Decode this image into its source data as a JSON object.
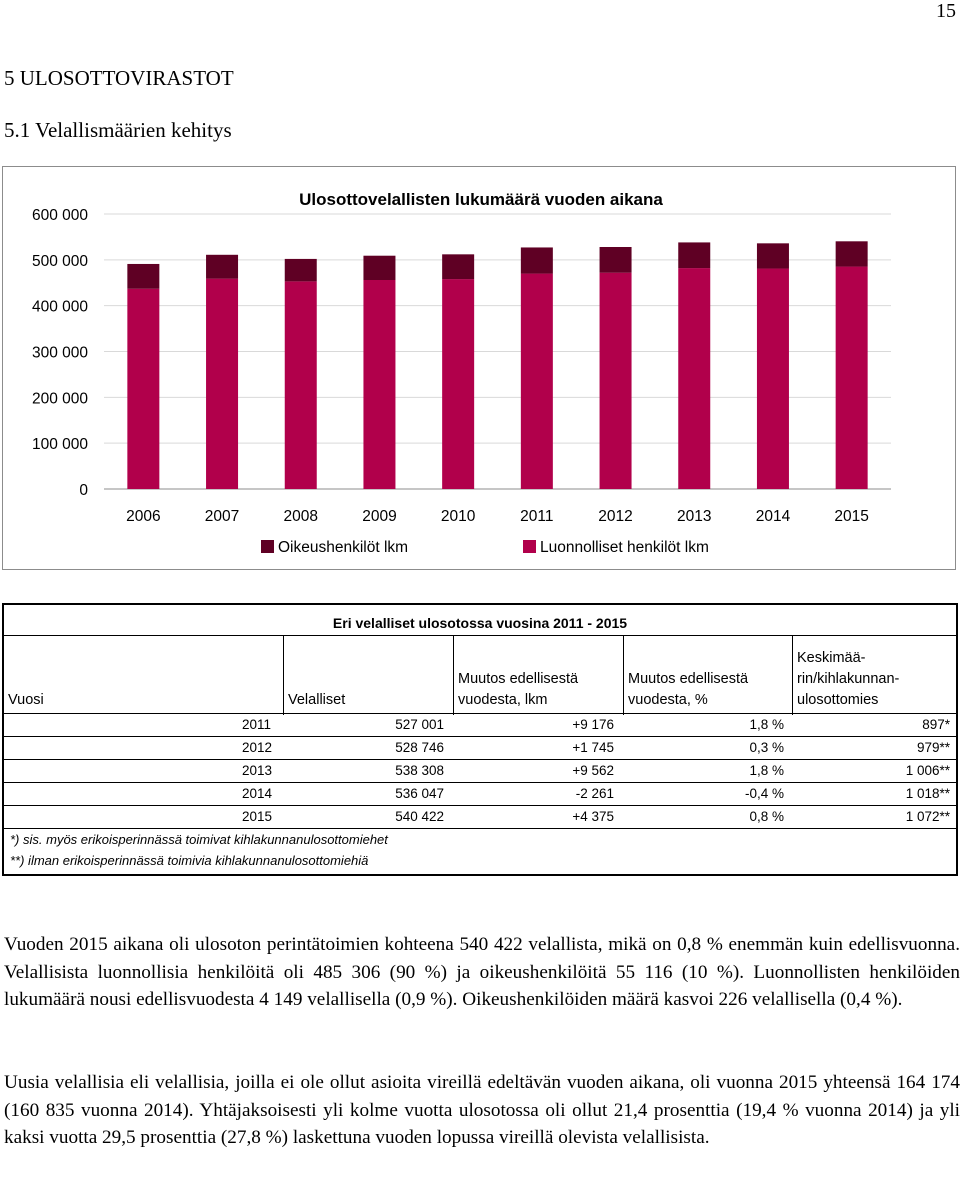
{
  "page_number": "15",
  "section_heading": "5  ULOSOTTOVIRASTOT",
  "subsection_heading": "5.1  Velallismäärien kehitys",
  "colors": {
    "oikeus": "#5f0024",
    "luonnolliset": "#b1004b",
    "grid": "#d9d9d9"
  },
  "chart_data": {
    "type": "bar",
    "stacked": true,
    "title": "Ulosottovelallisten lukumäärä vuoden aikana",
    "categories": [
      "2006",
      "2007",
      "2008",
      "2009",
      "2010",
      "2011",
      "2012",
      "2013",
      "2014",
      "2015"
    ],
    "series": [
      {
        "name": "Luonnolliset henkilöt lkm",
        "values": [
          437000,
          459000,
          453000,
          456000,
          458000,
          470000,
          472000,
          482000,
          481000,
          485306
        ]
      },
      {
        "name": "Oikeushenkilöt lkm",
        "values": [
          54000,
          52000,
          49000,
          53000,
          54000,
          57000,
          56000,
          56000,
          55000,
          55116
        ]
      }
    ],
    "yticks": [
      "0",
      "100 000",
      "200 000",
      "300 000",
      "400 000",
      "500 000",
      "600 000"
    ],
    "ylim": [
      0,
      600000
    ],
    "legend": [
      "Oikeushenkilöt lkm",
      "Luonnolliset henkilöt lkm"
    ]
  },
  "table": {
    "title": "Eri velalliset ulosotossa vuosina 2011 - 2015",
    "headers": {
      "vuosi": "Vuosi",
      "velalliset": "Velalliset",
      "muutos_lkm_1": "Muutos edellisestä",
      "muutos_lkm_2": "vuodesta, lkm",
      "muutos_pct_1": "Muutos edellisestä",
      "muutos_pct_2": "vuodesta, %",
      "keski_1": "Keskimää-",
      "keski_2": "rin/kihlakunnan-",
      "keski_3": "ulosottomies"
    },
    "rows": [
      {
        "year": "2011",
        "velalliset": "527 001",
        "lkm": "+9 176",
        "pct": "1,8 %",
        "keski": "897*"
      },
      {
        "year": "2012",
        "velalliset": "528 746",
        "lkm": "+1 745",
        "pct": "0,3 %",
        "keski": "979**"
      },
      {
        "year": "2013",
        "velalliset": "538 308",
        "lkm": "+9 562",
        "pct": "1,8 %",
        "keski": "1 006**"
      },
      {
        "year": "2014",
        "velalliset": "536 047",
        "lkm": "-2 261",
        "pct": "-0,4 %",
        "keski": "1 018**"
      },
      {
        "year": "2015",
        "velalliset": "540 422",
        "lkm": "+4 375",
        "pct": "0,8 %",
        "keski": "1 072**"
      }
    ],
    "notes": [
      "*) sis. myös erikoisperinnässä toimivat kihlakunnanulosottomiehet",
      "**) ilman erikoisperinnässä toimivia kihlakunnanulosottomiehiä"
    ]
  },
  "paragraphs": [
    "Vuoden 2015 aikana oli ulosoton perintätoimien kohteena 540 422 velallista, mikä on 0,8 % enemmän kuin edellisvuonna. Velallisista luonnollisia henkilöitä oli 485 306 (90 %) ja oikeushenkilöitä 55 116 (10 %). Luonnollisten henkilöiden lukumäärä nousi edellisvuodesta 4 149 velallisella (0,9 %). Oikeushenkilöiden määrä kasvoi 226 velallisella (0,4 %).",
    "Uusia velallisia eli velallisia, joilla ei ole ollut asioita vireillä edeltävän vuoden aikana, oli vuonna 2015 yhteensä 164 174 (160 835 vuonna 2014). Yhtäjaksoisesti yli kolme vuotta ulosotossa oli ollut 21,4 prosenttia (19,4 % vuonna 2014) ja yli kaksi vuotta 29,5 prosenttia (27,8 %) laskettuna vuoden lopussa vireillä olevista velallisista."
  ]
}
